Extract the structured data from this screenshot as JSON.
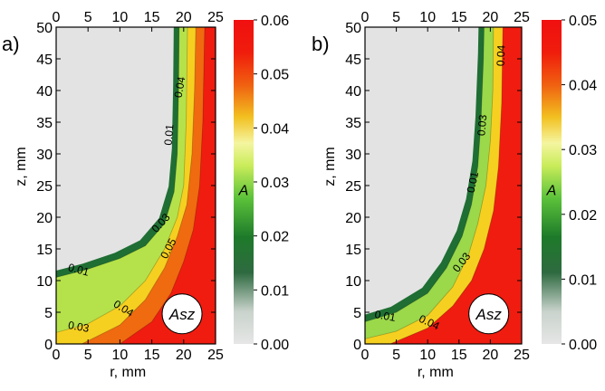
{
  "chart_data": [
    {
      "type": "heatmap",
      "panel_label": "a)",
      "xlabel": "r, mm",
      "ylabel": "z, mm",
      "colorbar_label": "A",
      "xlim": [
        0,
        25
      ],
      "ylim": [
        0,
        50
      ],
      "x_ticks": [
        "0",
        "5",
        "10",
        "15",
        "20",
        "25"
      ],
      "y_ticks": [
        "0",
        "5",
        "10",
        "15",
        "20",
        "25",
        "30",
        "35",
        "40",
        "45",
        "50"
      ],
      "colorbar_range": [
        0,
        0.06
      ],
      "colorbar_ticks": [
        "0.00",
        "0.01",
        "0.02",
        "0.03",
        "0.04",
        "0.05",
        "0.06"
      ],
      "annotation": "Asz",
      "contours": [
        {
          "label": "0.01",
          "points": [
            [
              0,
              10.5
            ],
            [
              5,
              11.8
            ],
            [
              10,
              13.5
            ],
            [
              14,
              15.5
            ],
            [
              17,
              19
            ],
            [
              18.5,
              24
            ],
            [
              19,
              30
            ],
            [
              19.2,
              40
            ],
            [
              19.3,
              50
            ]
          ]
        },
        {
          "label": "0.03",
          "points": [
            [
              0,
              1.8
            ],
            [
              5,
              3.2
            ],
            [
              10,
              6
            ],
            [
              14,
              10
            ],
            [
              17,
              15
            ],
            [
              19,
              20
            ],
            [
              20,
              25
            ],
            [
              20.4,
              35
            ],
            [
              20.6,
              50
            ]
          ]
        },
        {
          "label": "0.04",
          "points": [
            [
              4,
              0
            ],
            [
              10,
              3
            ],
            [
              14,
              7
            ],
            [
              17,
              12
            ],
            [
              19,
              17
            ],
            [
              20.5,
              22
            ],
            [
              21.3,
              30
            ],
            [
              21.7,
              40
            ],
            [
              21.9,
              50
            ]
          ]
        },
        {
          "label": "0.05",
          "points": [
            [
              10,
              0
            ],
            [
              15,
              3.5
            ],
            [
              18,
              8
            ],
            [
              20,
              13
            ],
            [
              21.5,
              18
            ],
            [
              22.5,
              25
            ],
            [
              23,
              35
            ],
            [
              23.3,
              50
            ]
          ]
        }
      ],
      "contour_labels": [
        {
          "text": "0.01",
          "x": 3.5,
          "y": 11.6,
          "angle": 15
        },
        {
          "text": "0.03",
          "x": 3.5,
          "y": 2.6,
          "angle": 10
        },
        {
          "text": "0.04",
          "x": 10.5,
          "y": 5.5,
          "angle": 32
        },
        {
          "text": "0.05",
          "x": 17.7,
          "y": 15,
          "angle": -62
        },
        {
          "text": "0.03",
          "x": 16.5,
          "y": 19,
          "angle": -48
        },
        {
          "text": "0.01",
          "x": 17.8,
          "y": 33,
          "angle": -85
        },
        {
          "text": "0.04",
          "x": 19.5,
          "y": 40.5,
          "angle": -80
        }
      ]
    },
    {
      "type": "heatmap",
      "panel_label": "b)",
      "xlabel": "r, mm",
      "ylabel": "z, mm",
      "colorbar_label": "A",
      "xlim": [
        0,
        25
      ],
      "ylim": [
        0,
        50
      ],
      "x_ticks": [
        "0",
        "5",
        "10",
        "15",
        "20",
        "25"
      ],
      "y_ticks": [
        "0",
        "5",
        "10",
        "15",
        "20",
        "25",
        "30",
        "35",
        "40",
        "45",
        "50"
      ],
      "colorbar_range": [
        0,
        0.05
      ],
      "colorbar_ticks": [
        "0.00",
        "0.01",
        "0.02",
        "0.03",
        "0.04",
        "0.05"
      ],
      "annotation": "Asz",
      "contours": [
        {
          "label": "0.01",
          "points": [
            [
              0,
              3.5
            ],
            [
              5,
              5
            ],
            [
              10,
              8
            ],
            [
              13,
              12
            ],
            [
              15.5,
              17
            ],
            [
              17,
              22
            ],
            [
              18,
              28
            ],
            [
              18.5,
              35
            ],
            [
              18.9,
              45
            ],
            [
              19,
              50
            ]
          ]
        },
        {
          "label": "0.03",
          "points": [
            [
              0,
              0.8
            ],
            [
              5,
              2
            ],
            [
              10,
              4.5
            ],
            [
              14,
              9
            ],
            [
              16.5,
              14
            ],
            [
              18,
              19
            ],
            [
              19.3,
              25
            ],
            [
              20,
              32
            ],
            [
              20.4,
              40
            ],
            [
              20.5,
              50
            ]
          ]
        },
        {
          "label": "0.04",
          "points": [
            [
              4,
              0
            ],
            [
              10,
              2.5
            ],
            [
              14,
              6
            ],
            [
              17,
              10
            ],
            [
              19,
              15
            ],
            [
              20.5,
              21
            ],
            [
              21.3,
              28
            ],
            [
              21.8,
              38
            ],
            [
              22,
              50
            ]
          ]
        }
      ],
      "contour_labels": [
        {
          "text": "0.01",
          "x": 3.2,
          "y": 4.3,
          "angle": 10
        },
        {
          "text": "0.04",
          "x": 10.2,
          "y": 3.3,
          "angle": 25
        },
        {
          "text": "0.03",
          "x": 15.5,
          "y": 12.8,
          "angle": -52
        },
        {
          "text": "0.01",
          "x": 17.3,
          "y": 25.5,
          "angle": -78
        },
        {
          "text": "0.03",
          "x": 18.8,
          "y": 34.5,
          "angle": -85
        },
        {
          "text": "0.04",
          "x": 21.8,
          "y": 45.5,
          "angle": -88
        }
      ]
    }
  ]
}
